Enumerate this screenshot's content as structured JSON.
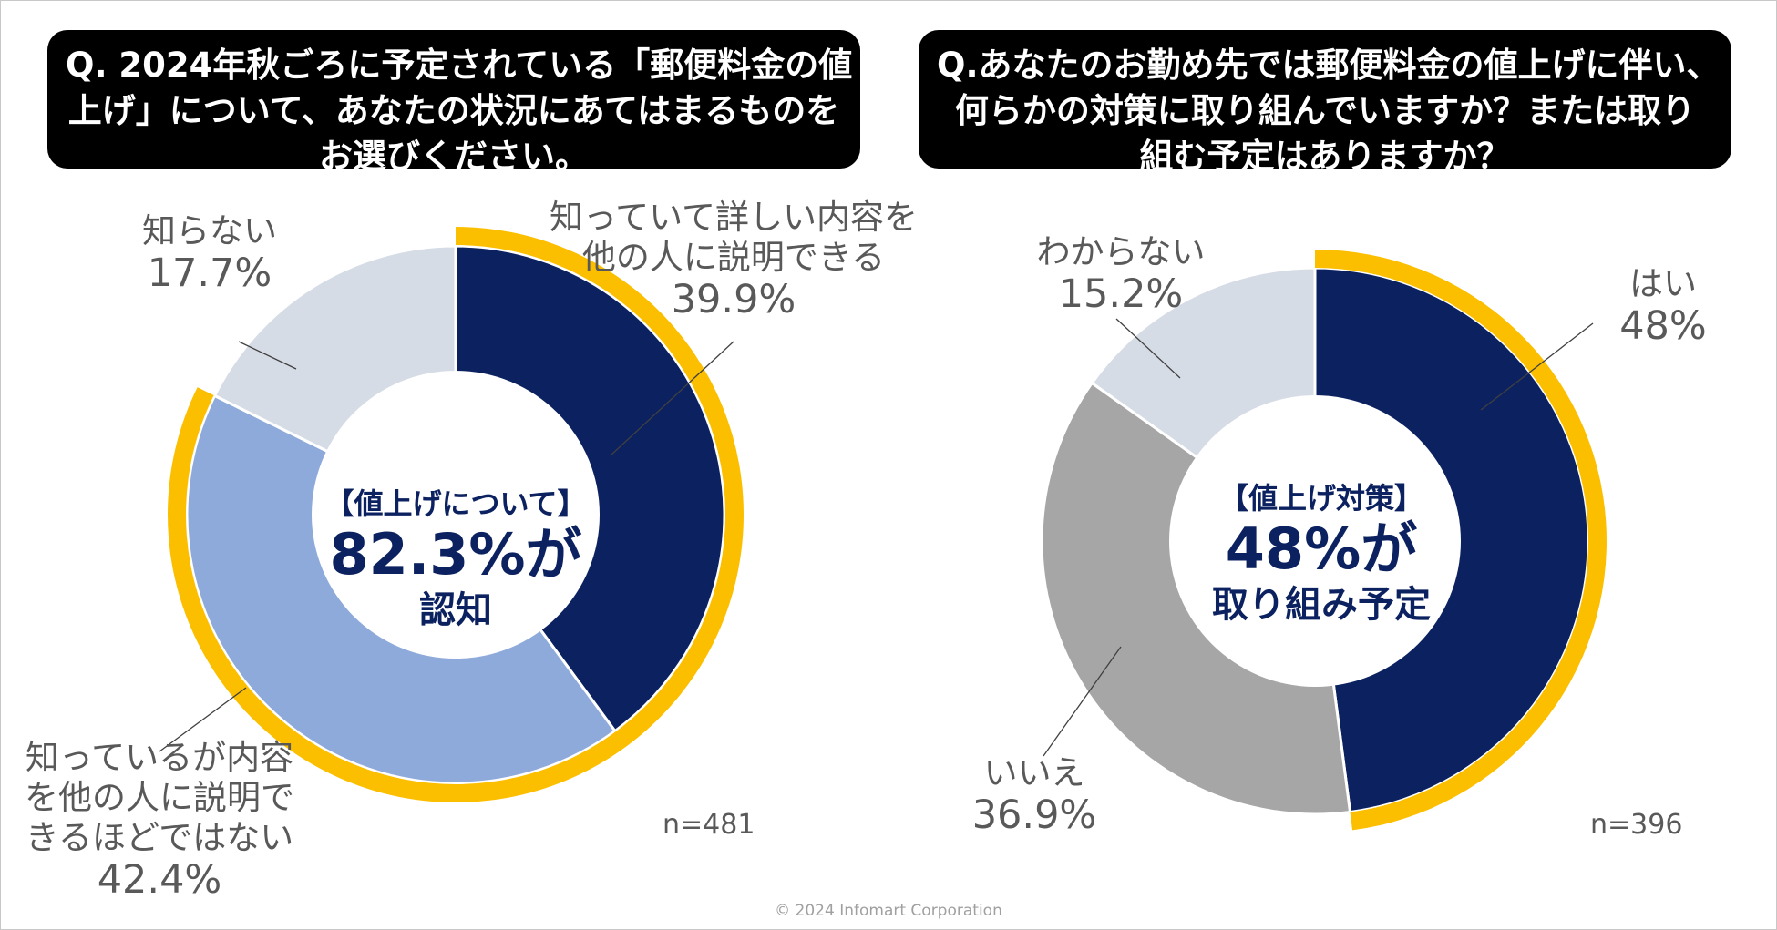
{
  "questions": {
    "q1": [
      "Q. 2024年秋ごろに予定されている「郵便料金の値",
      "上げ」について、あなたの状況にあてはまるものを",
      "お選びください。"
    ],
    "q2": [
      "Q.あなたのお勤め先では郵便料金の値上げに伴い、",
      "何らかの対策に取り組んでいますか？または取り",
      "組む予定はありますか？"
    ]
  },
  "chart_data": [
    {
      "type": "pie",
      "subtype": "donut",
      "slices": [
        {
          "label": "知っていて詳しい内容を他の人に説明できる",
          "value": 39.9,
          "color": "#0b2160"
        },
        {
          "label": "知っているが内容を他の人に説明できるほどではない",
          "value": 42.4,
          "color": "#8eaadb"
        },
        {
          "label": "知らない",
          "value": 17.7,
          "color": "#d6dce5"
        }
      ],
      "highlight": {
        "value": 82.3,
        "color": "#fbbf00"
      },
      "center": {
        "line1": "【値上げについて】",
        "line2": "82.3%が",
        "line3": "認知"
      },
      "sample": "n=481",
      "label_text": [
        {
          "lines": [
            "知っていて詳しい内容を",
            "他の人に説明できる"
          ],
          "pct": "39.9%"
        },
        {
          "lines": [
            "知っているが内容",
            "を他の人に説明で",
            "きるほどではない"
          ],
          "pct": "42.4%"
        },
        {
          "lines": [
            "知らない"
          ],
          "pct": "17.7%"
        }
      ]
    },
    {
      "type": "pie",
      "subtype": "donut",
      "slices": [
        {
          "label": "はい",
          "value": 48,
          "color": "#0b2160"
        },
        {
          "label": "いいえ",
          "value": 36.9,
          "color": "#a6a6a6"
        },
        {
          "label": "わからない",
          "value": 15.2,
          "color": "#d6dce5"
        }
      ],
      "highlight": {
        "value": 48,
        "color": "#fbbf00"
      },
      "center": {
        "line1": "【値上げ対策】",
        "line2": "48%が",
        "line3": "取り組み予定"
      },
      "sample": "n=396",
      "label_text": [
        {
          "lines": [
            "はい"
          ],
          "pct": "48%"
        },
        {
          "lines": [
            "いいえ"
          ],
          "pct": "36.9%"
        },
        {
          "lines": [
            "わからない"
          ],
          "pct": "15.2%"
        }
      ]
    }
  ],
  "footer": "© 2024 Infomart Corporation"
}
